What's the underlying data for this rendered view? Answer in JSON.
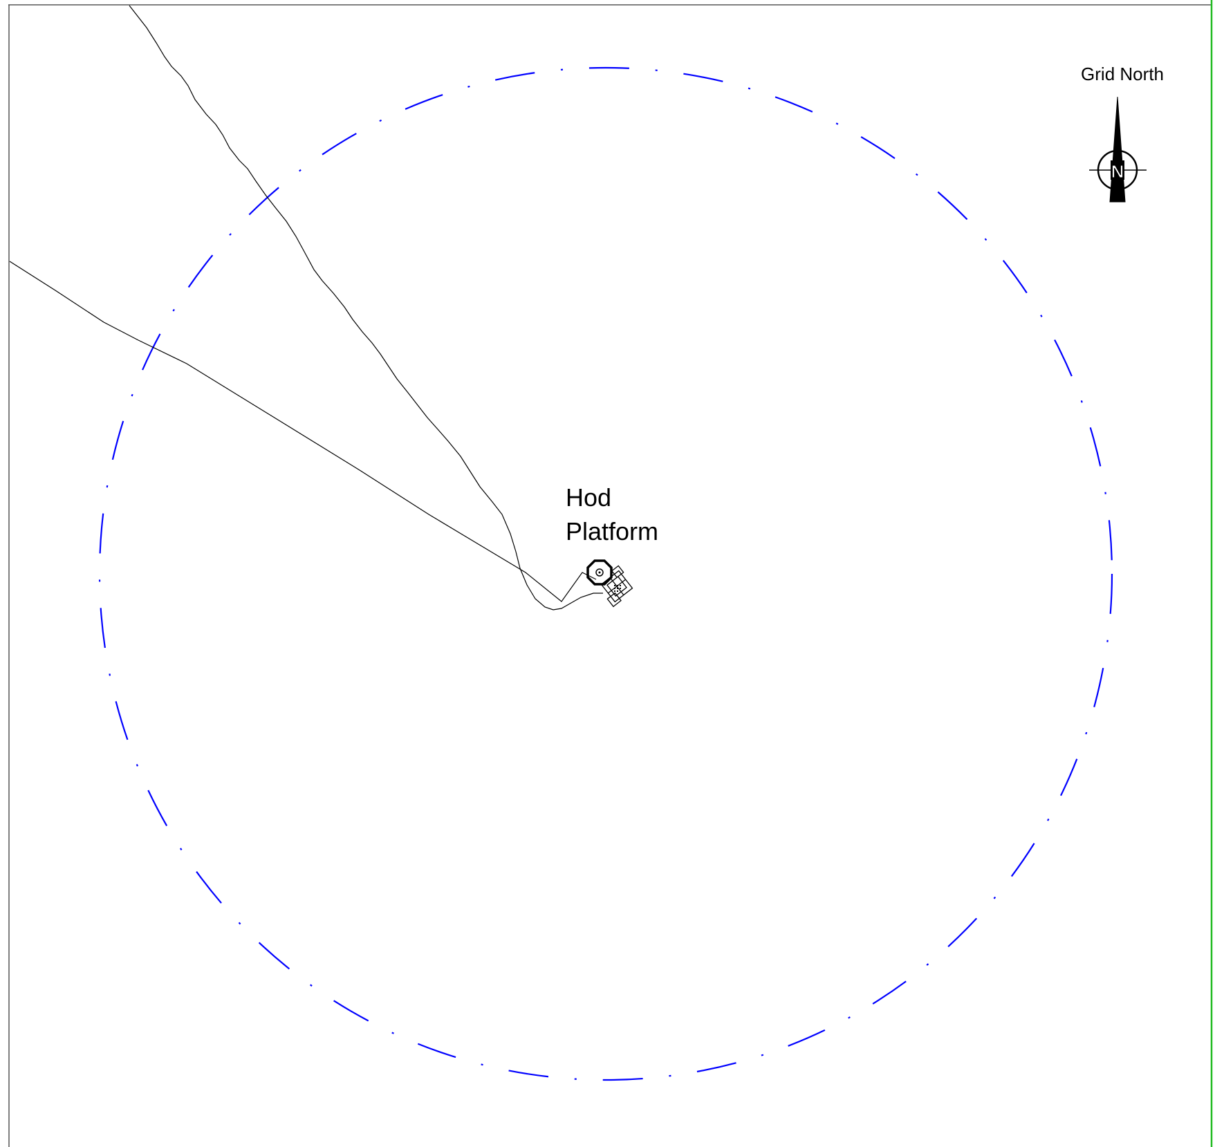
{
  "map": {
    "platform_label_line1": "Hod",
    "platform_label_line2": "Platform",
    "north_arrow_label": "Grid North",
    "north_arrow_letter": "N",
    "colors": {
      "safety_zone_circle": "#0000ff",
      "frame_right_border": "#22bb22",
      "frame_border": "#555555",
      "pipelines": "#000000"
    },
    "features": [
      "safety-zone-circle",
      "pipeline",
      "platform-structure",
      "north-arrow"
    ]
  }
}
